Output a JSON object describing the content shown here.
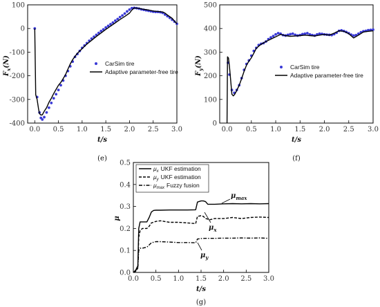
{
  "chart_data": [
    {
      "type": "scatter",
      "panel_label": "(e)",
      "xlabel": "t/s",
      "ylabel": "F",
      "ylabel_sub": "x",
      "ylabel_unit": "(N)",
      "xlim": [
        -0.15,
        3.0
      ],
      "ylim": [
        -400,
        100
      ],
      "xticks": [
        "0.0",
        "0.5",
        "1.0",
        "1.5",
        "2.0",
        "2.5",
        "3.0"
      ],
      "yticks": [
        "100",
        "0",
        "-100",
        "-200",
        "-300",
        "-400"
      ],
      "legend_position": "center-right",
      "series": [
        {
          "name": "CarSim tire",
          "style": "dots",
          "color": "#3a3ad6",
          "x": [
            0.0,
            0.05,
            0.1,
            0.13,
            0.16,
            0.2,
            0.25,
            0.3,
            0.35,
            0.4,
            0.45,
            0.5,
            0.55,
            0.6,
            0.65,
            0.7,
            0.75,
            0.8,
            0.85,
            0.9,
            0.95,
            1.0,
            1.05,
            1.1,
            1.15,
            1.2,
            1.25,
            1.3,
            1.35,
            1.4,
            1.45,
            1.5,
            1.55,
            1.6,
            1.65,
            1.7,
            1.75,
            1.8,
            1.85,
            1.9,
            1.95,
            2.0,
            2.05,
            2.1,
            2.15,
            2.2,
            2.25,
            2.3,
            2.35,
            2.4,
            2.45,
            2.5,
            2.55,
            2.6,
            2.65,
            2.7,
            2.75,
            2.8,
            2.85,
            2.9,
            2.95,
            3.0
          ],
          "y": [
            0,
            -290,
            -355,
            -378,
            -385,
            -375,
            -355,
            -335,
            -315,
            -295,
            -278,
            -260,
            -240,
            -220,
            -200,
            -180,
            -160,
            -140,
            -120,
            -108,
            -95,
            -82,
            -72,
            -62,
            -52,
            -43,
            -35,
            -27,
            -19,
            -11,
            -4,
            4,
            11,
            18,
            25,
            33,
            40,
            48,
            55,
            63,
            72,
            80,
            86,
            87,
            86,
            84,
            81,
            79,
            77,
            75,
            73,
            71,
            70,
            70,
            69,
            66,
            59,
            52,
            45,
            37,
            29,
            20
          ]
        },
        {
          "name": "Adaptive parameter-free tire",
          "style": "line",
          "color": "#000000",
          "x": [
            0.0,
            0.02,
            0.05,
            0.08,
            0.1,
            0.13,
            0.16,
            0.2,
            0.25,
            0.3,
            0.35,
            0.4,
            0.45,
            0.5,
            0.55,
            0.6,
            0.65,
            0.7,
            0.75,
            0.8,
            0.85,
            0.9,
            1.0,
            1.1,
            1.2,
            1.3,
            1.4,
            1.5,
            1.6,
            1.7,
            1.8,
            1.9,
            2.0,
            2.05,
            2.1,
            2.15,
            2.2,
            2.3,
            2.4,
            2.5,
            2.6,
            2.7,
            2.75,
            2.8,
            2.9,
            3.0
          ],
          "y": [
            0,
            -280,
            -300,
            -340,
            -360,
            -366,
            -365,
            -350,
            -335,
            -312,
            -295,
            -275,
            -258,
            -240,
            -228,
            -212,
            -195,
            -172,
            -150,
            -132,
            -118,
            -105,
            -85,
            -66,
            -50,
            -34,
            -19,
            -4,
            10,
            24,
            38,
            51,
            65,
            78,
            87,
            86,
            85,
            81,
            78,
            74,
            72,
            70,
            65,
            57,
            43,
            20
          ]
        }
      ]
    },
    {
      "type": "scatter",
      "panel_label": "(f)",
      "xlabel": "t/s",
      "ylabel": "F",
      "ylabel_sub": "y",
      "ylabel_unit": "(N)",
      "xlim": [
        -0.15,
        3.0
      ],
      "ylim": [
        0,
        500
      ],
      "xticks": [
        "0.0",
        "0.5",
        "1.0",
        "1.5",
        "2.0",
        "2.5",
        "3.0"
      ],
      "yticks": [
        "500",
        "400",
        "300",
        "200",
        "100",
        "0"
      ],
      "legend_position": "center-right",
      "series": [
        {
          "name": "CarSim tire",
          "style": "dots",
          "color": "#3a3ad6",
          "x": [
            0.02,
            0.05,
            0.1,
            0.15,
            0.2,
            0.25,
            0.3,
            0.35,
            0.4,
            0.45,
            0.5,
            0.55,
            0.6,
            0.65,
            0.7,
            0.75,
            0.8,
            0.85,
            0.9,
            0.95,
            1.0,
            1.05,
            1.1,
            1.15,
            1.2,
            1.25,
            1.3,
            1.35,
            1.4,
            1.45,
            1.5,
            1.55,
            1.6,
            1.65,
            1.7,
            1.75,
            1.8,
            1.85,
            1.9,
            1.95,
            2.0,
            2.05,
            2.1,
            2.15,
            2.2,
            2.25,
            2.3,
            2.35,
            2.4,
            2.45,
            2.5,
            2.55,
            2.6,
            2.65,
            2.7,
            2.75,
            2.8,
            2.85,
            2.9,
            2.95,
            3.0
          ],
          "y": [
            255,
            205,
            140,
            128,
            140,
            160,
            190,
            225,
            250,
            265,
            285,
            305,
            318,
            330,
            335,
            338,
            345,
            355,
            362,
            368,
            375,
            380,
            378,
            372,
            370,
            373,
            376,
            378,
            373,
            370,
            372,
            376,
            378,
            380,
            375,
            372,
            370,
            375,
            378,
            377,
            375,
            374,
            373,
            372,
            376,
            382,
            390,
            392,
            389,
            385,
            380,
            374,
            370,
            372,
            378,
            384,
            388,
            390,
            393,
            394,
            395
          ]
        },
        {
          "name": "Adaptive parameter-free tire",
          "style": "line",
          "color": "#000000",
          "x": [
            0.0,
            0.01,
            0.03,
            0.05,
            0.08,
            0.1,
            0.13,
            0.16,
            0.2,
            0.25,
            0.3,
            0.35,
            0.4,
            0.45,
            0.5,
            0.55,
            0.6,
            0.65,
            0.7,
            0.8,
            0.9,
            1.0,
            1.1,
            1.2,
            1.3,
            1.4,
            1.5,
            1.6,
            1.7,
            1.8,
            1.9,
            2.0,
            2.1,
            2.2,
            2.3,
            2.4,
            2.5,
            2.6,
            2.7,
            2.8,
            2.9,
            3.0
          ],
          "y": [
            0,
            280,
            275,
            240,
            170,
            122,
            115,
            122,
            138,
            160,
            188,
            218,
            245,
            262,
            276,
            295,
            316,
            325,
            333,
            345,
            355,
            365,
            375,
            370,
            367,
            368,
            370,
            372,
            370,
            368,
            372,
            375,
            372,
            380,
            390,
            388,
            378,
            360,
            372,
            385,
            388,
            390
          ]
        }
      ]
    },
    {
      "type": "line",
      "panel_label": "(g)",
      "xlabel": "t/s",
      "ylabel": "μ",
      "xlim": [
        0.0,
        3.0
      ],
      "ylim": [
        0.0,
        0.5
      ],
      "xticks": [
        "0.0",
        "0.5",
        "1.0",
        "1.5",
        "2.0",
        "2.5",
        "3.0"
      ],
      "yticks": [
        "0.5",
        "0.4",
        "0.3",
        "0.2",
        "0.1",
        "0.0"
      ],
      "legend_position": "top-left",
      "annotations": [
        {
          "text": "μ",
          "sub": "max"
        },
        {
          "text": "μ",
          "sub": "x"
        },
        {
          "text": "μ",
          "sub": "y"
        }
      ],
      "series": [
        {
          "name_symbol": "μ",
          "name_sub": "x",
          "name_text": "UKF estimation",
          "style": "solid",
          "x": [
            0.0,
            0.05,
            0.1,
            0.12,
            0.15,
            0.2,
            0.3,
            0.35,
            0.4,
            0.45,
            0.5,
            0.6,
            0.8,
            1.0,
            1.2,
            1.38,
            1.42,
            1.5,
            1.55,
            1.6,
            1.65,
            1.7,
            1.8,
            2.0,
            2.2,
            2.4,
            2.6,
            2.8,
            3.0
          ],
          "y": [
            0.0,
            0.01,
            0.03,
            0.2,
            0.23,
            0.23,
            0.23,
            0.25,
            0.275,
            0.282,
            0.283,
            0.283,
            0.284,
            0.284,
            0.284,
            0.285,
            0.32,
            0.325,
            0.325,
            0.322,
            0.31,
            0.31,
            0.31,
            0.312,
            0.313,
            0.312,
            0.313,
            0.312,
            0.313
          ]
        },
        {
          "name_symbol": "μ",
          "name_sub": "y",
          "name_text": "UKF estimation",
          "style": "dash",
          "x": [
            0.0,
            0.05,
            0.1,
            0.12,
            0.15,
            0.2,
            0.3,
            0.35,
            0.4,
            0.5,
            0.6,
            0.8,
            1.0,
            1.2,
            1.38,
            1.42,
            1.5,
            1.55,
            1.6,
            1.7,
            1.8,
            2.0,
            2.2,
            2.4,
            2.6,
            2.8,
            3.0
          ],
          "y": [
            0.0,
            0.005,
            0.02,
            0.16,
            0.19,
            0.2,
            0.2,
            0.21,
            0.225,
            0.232,
            0.235,
            0.228,
            0.228,
            0.225,
            0.222,
            0.255,
            0.258,
            0.255,
            0.245,
            0.24,
            0.245,
            0.245,
            0.25,
            0.245,
            0.25,
            0.252,
            0.25
          ]
        },
        {
          "name_symbol": "μ",
          "name_sub": "max",
          "name_text": "Fuzzy fusion",
          "style": "dashdot",
          "x": [
            0.0,
            0.05,
            0.1,
            0.12,
            0.15,
            0.2,
            0.3,
            0.35,
            0.4,
            0.5,
            0.6,
            0.8,
            1.0,
            1.2,
            1.38,
            1.42,
            1.5,
            1.6,
            1.8,
            2.0,
            2.2,
            2.4,
            2.6,
            2.8,
            3.0
          ],
          "y": [
            0.0,
            0.005,
            0.02,
            0.1,
            0.11,
            0.11,
            0.115,
            0.125,
            0.135,
            0.14,
            0.14,
            0.138,
            0.136,
            0.136,
            0.135,
            0.152,
            0.154,
            0.155,
            0.155,
            0.156,
            0.156,
            0.157,
            0.156,
            0.157,
            0.155
          ]
        }
      ]
    }
  ]
}
